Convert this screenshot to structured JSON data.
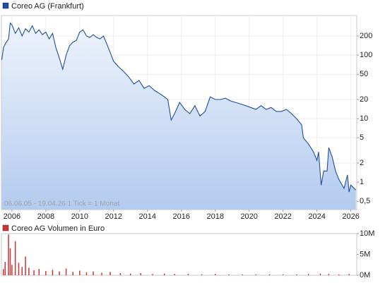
{
  "chart_data": [
    {
      "type": "line",
      "log_scale": true,
      "grid": true,
      "annotation": "06.06.05 - 19.04.26   1 Tick = 1 Monat",
      "xlim": [
        2005.38,
        2026.35
      ],
      "xticks": [
        2006,
        2008,
        2010,
        2012,
        2014,
        2016,
        2018,
        2020,
        2022,
        2024,
        2026
      ],
      "ylim": [
        0.37,
        420
      ],
      "yticks": [
        {
          "value": 0.5,
          "label": "0,5"
        },
        1,
        2,
        5,
        10,
        20,
        50,
        100,
        200
      ],
      "x": [
        2005.4,
        2005.5,
        2005.6,
        2005.8,
        2005.9,
        2006.0,
        2006.2,
        2006.4,
        2006.6,
        2006.8,
        2007.0,
        2007.2,
        2007.4,
        2007.6,
        2007.8,
        2008.0,
        2008.2,
        2008.4,
        2008.6,
        2008.8,
        2009.0,
        2009.2,
        2009.4,
        2009.6,
        2009.8,
        2010.0,
        2010.2,
        2010.4,
        2010.6,
        2010.8,
        2011.0,
        2011.2,
        2011.4,
        2011.6,
        2011.8,
        2012.0,
        2012.3,
        2012.6,
        2012.9,
        2013.2,
        2013.5,
        2013.8,
        2014.1,
        2014.4,
        2014.7,
        2015.0,
        2015.2,
        2015.4,
        2015.6,
        2015.9,
        2016.2,
        2016.5,
        2016.8,
        2017.1,
        2017.4,
        2017.7,
        2018.0,
        2018.3,
        2018.6,
        2018.9,
        2019.2,
        2019.5,
        2019.8,
        2020.1,
        2020.4,
        2020.7,
        2021.0,
        2021.3,
        2021.6,
        2021.9,
        2022.2,
        2022.5,
        2022.8,
        2023.1,
        2023.2,
        2023.5,
        2023.8,
        2024.0,
        2024.1,
        2024.25,
        2024.4,
        2024.6,
        2024.7,
        2024.9,
        2025.1,
        2025.3,
        2025.6,
        2025.8,
        2025.9,
        2026.0,
        2026.3
      ],
      "series": [
        {
          "name": "Coreo AG (Frankfurt)",
          "color": "#1f4e9c",
          "values": [
            84,
            130,
            150,
            180,
            320,
            300,
            220,
            270,
            200,
            260,
            230,
            290,
            220,
            250,
            210,
            230,
            180,
            220,
            130,
            90,
            60,
            100,
            140,
            160,
            170,
            230,
            250,
            200,
            190,
            210,
            190,
            180,
            200,
            150,
            110,
            80,
            65,
            55,
            45,
            35,
            40,
            30,
            33,
            28,
            25,
            22,
            20,
            9.5,
            12,
            18,
            14,
            12,
            16,
            11,
            13,
            22,
            20,
            20,
            21,
            19,
            18,
            17,
            16,
            15,
            14,
            16,
            14,
            15,
            13,
            13,
            14,
            12,
            10,
            8,
            5,
            4,
            3,
            2.2,
            3,
            0.9,
            1.5,
            1.5,
            3.5,
            2.5,
            1.5,
            1.1,
            0.8,
            1.3,
            0.7,
            0.9,
            0.75
          ]
        }
      ]
    },
    {
      "type": "bar",
      "xlim": [
        2005.38,
        2026.35
      ],
      "ylim": [
        0,
        10
      ],
      "yticks": [
        {
          "value": 0,
          "label": "0M"
        },
        {
          "value": 5,
          "label": "5M"
        },
        {
          "value": 10,
          "label": "10M"
        }
      ],
      "x": [
        2005.5,
        2005.6,
        2005.8,
        2005.9,
        2006.0,
        2006.2,
        2006.4,
        2006.6,
        2006.8,
        2007.0,
        2007.3,
        2007.6,
        2008.0,
        2008.4,
        2008.8,
        2009.2,
        2009.6,
        2010.0,
        2010.4,
        2010.8,
        2011.3,
        2011.8,
        2012.4,
        2013.0,
        2013.6,
        2014.3,
        2015.0,
        2015.6,
        2016.4,
        2017.2,
        2018.0,
        2018.8,
        2019.6,
        2020.4,
        2021.2,
        2022.0,
        2022.8,
        2023.5,
        2024.2,
        2024.7,
        2025.3,
        2025.9
      ],
      "series": [
        {
          "name": "Coreo AG Volumen in Euro",
          "color": "#cc3333",
          "values": [
            1.5,
            3.2,
            9.8,
            6.5,
            2.5,
            8.2,
            3.0,
            2.0,
            4.5,
            1.8,
            1.2,
            1.5,
            1.0,
            1.3,
            0.9,
            1.6,
            0.8,
            1.1,
            0.7,
            0.9,
            0.6,
            0.8,
            0.5,
            0.4,
            0.5,
            0.3,
            0.4,
            0.3,
            0.3,
            0.2,
            0.3,
            0.2,
            0.2,
            0.2,
            0.2,
            0.2,
            0.2,
            0.3,
            0.4,
            0.3,
            0.2,
            0.3
          ]
        }
      ]
    }
  ]
}
